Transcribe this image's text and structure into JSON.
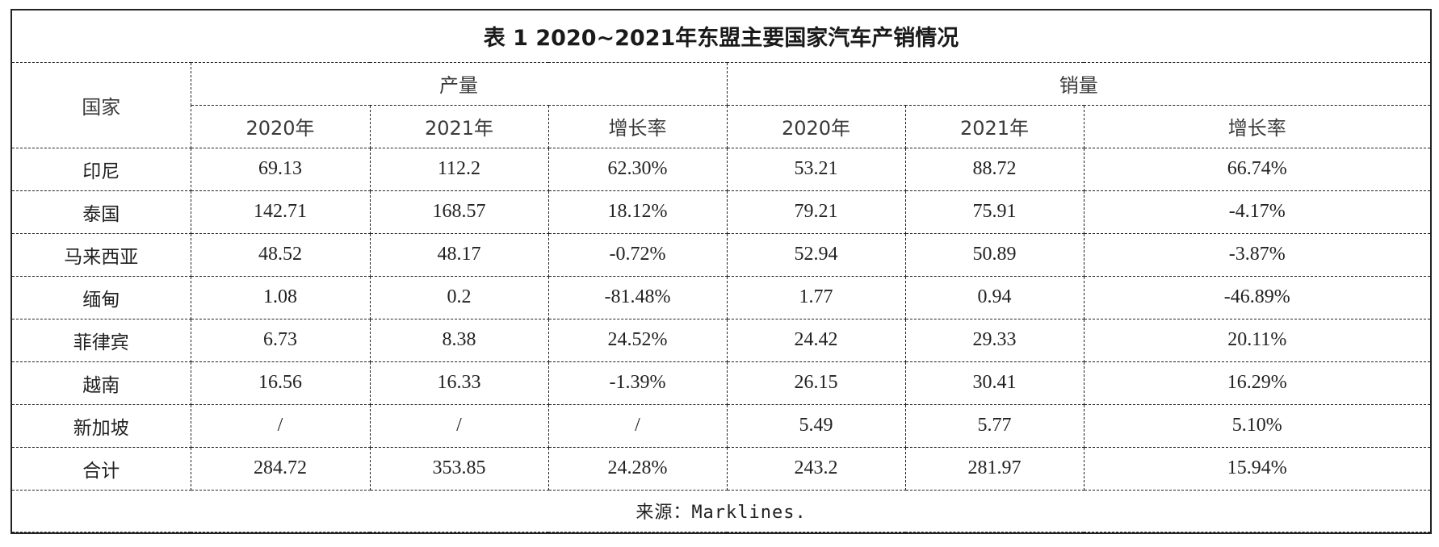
{
  "table": {
    "title": "表 1 2020~2021年东盟主要国家汽车产销情况",
    "country_header": "国家",
    "groups": [
      "产量",
      "销量"
    ],
    "subheaders": [
      "2020年",
      "2021年",
      "增长率",
      "2020年",
      "2021年",
      "增长率"
    ],
    "rows": [
      [
        "印尼",
        "69.13",
        "112.2",
        "62.30%",
        "53.21",
        "88.72",
        "66.74%"
      ],
      [
        "泰国",
        "142.71",
        "168.57",
        "18.12%",
        "79.21",
        "75.91",
        "-4.17%"
      ],
      [
        "马来西亚",
        "48.52",
        "48.17",
        "-0.72%",
        "52.94",
        "50.89",
        "-3.87%"
      ],
      [
        "缅甸",
        "1.08",
        "0.2",
        "-81.48%",
        "1.77",
        "0.94",
        "-46.89%"
      ],
      [
        "菲律宾",
        "6.73",
        "8.38",
        "24.52%",
        "24.42",
        "29.33",
        "20.11%"
      ],
      [
        "越南",
        "16.56",
        "16.33",
        "-1.39%",
        "26.15",
        "30.41",
        "16.29%"
      ],
      [
        "新加坡",
        "/",
        "/",
        "/",
        "5.49",
        "5.77",
        "5.10%"
      ],
      [
        "合计",
        "284.72",
        "353.85",
        "24.28%",
        "243.2",
        "281.97",
        "15.94%"
      ]
    ],
    "source": "来源：Marklines."
  }
}
